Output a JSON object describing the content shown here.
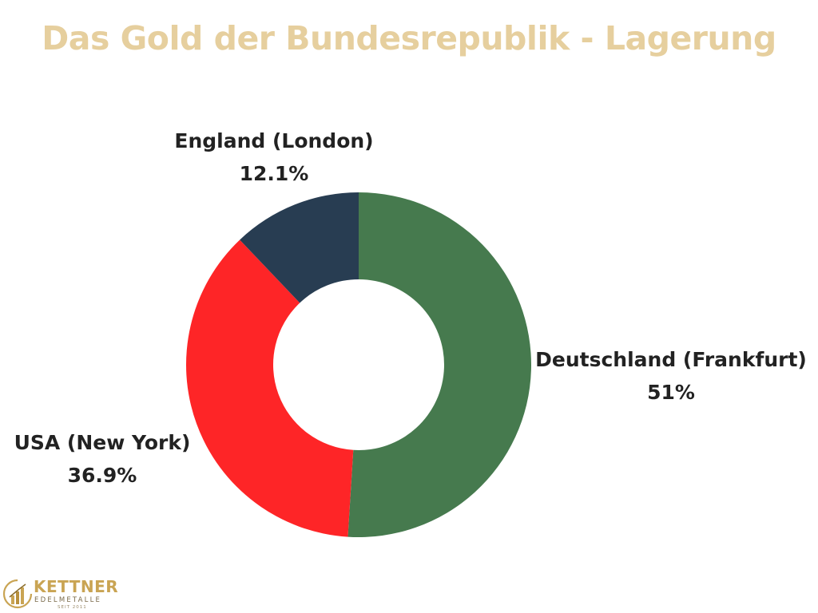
{
  "chart_data": {
    "type": "pie",
    "title": "Das Gold der Bundesrepublik - Lagerung",
    "donut": true,
    "start_angle_deg": 0,
    "direction": "clockwise",
    "slices": [
      {
        "label": "Deutschland (Frankfurt)",
        "value": 51,
        "value_label": "51%",
        "color": "#467a4e"
      },
      {
        "label": "USA (New York)",
        "value": 36.9,
        "value_label": "36.9%",
        "color": "#fe2527"
      },
      {
        "label": "England (London)",
        "value": 12.1,
        "value_label": "12.1%",
        "color": "#283d52"
      }
    ],
    "colors": {
      "title": "#e6cf9e",
      "labels": "#222222"
    }
  },
  "logo": {
    "name": "KETTNER",
    "subtitle": "EDELMETALLE",
    "since": "SEIT 2011"
  }
}
